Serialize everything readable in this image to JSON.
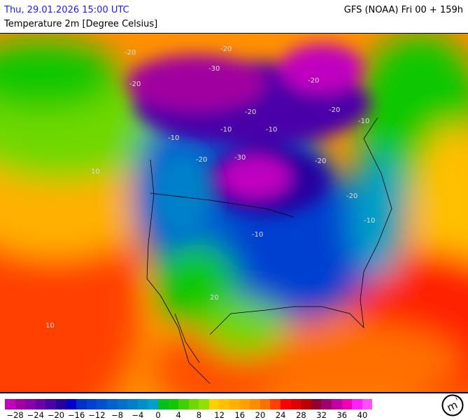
{
  "header": {
    "valid_time": "Thu, 29.01.2026 15:00 UTC",
    "model_run": "GFS (NOAA) Fri 00 + 159h",
    "parameter": "Temperature 2m [Degree Celsius]"
  },
  "legend": {
    "min": -30,
    "max": 42,
    "step": 2,
    "colors": [
      "#c000c0",
      "#a000a0",
      "#8800a8",
      "#6a00a8",
      "#4800a8",
      "#2800a0",
      "#0000c8",
      "#0030c8",
      "#0040d0",
      "#0050d0",
      "#0060d0",
      "#0070c8",
      "#0080c8",
      "#0090c8",
      "#00a0c8",
      "#00c020",
      "#10c800",
      "#40d000",
      "#70d800",
      "#90e000",
      "#ffd000",
      "#ffc000",
      "#ffb000",
      "#ffa000",
      "#ff8c00",
      "#ff7000",
      "#ff4000",
      "#ff0000",
      "#e00000",
      "#c00000",
      "#900030",
      "#a00070",
      "#c000a0",
      "#f000b0",
      "#ff20ff",
      "#ff50ff"
    ],
    "tick_labels": [
      "−28",
      "−24",
      "−20",
      "−16",
      "−12",
      "−8",
      "−4",
      "0",
      "4",
      "8",
      "12",
      "16",
      "20",
      "24",
      "28",
      "32",
      "36",
      "40"
    ]
  },
  "contour_labels": [
    "-20",
    "-20",
    "-30",
    "-20",
    "-20",
    "-20",
    "-10",
    "-20",
    "-20",
    "-10",
    "-30",
    "-20",
    "-20",
    "-10",
    "-10",
    "-10",
    "10",
    "10",
    "20",
    "-10"
  ],
  "logo": "meteologix-m-logo"
}
